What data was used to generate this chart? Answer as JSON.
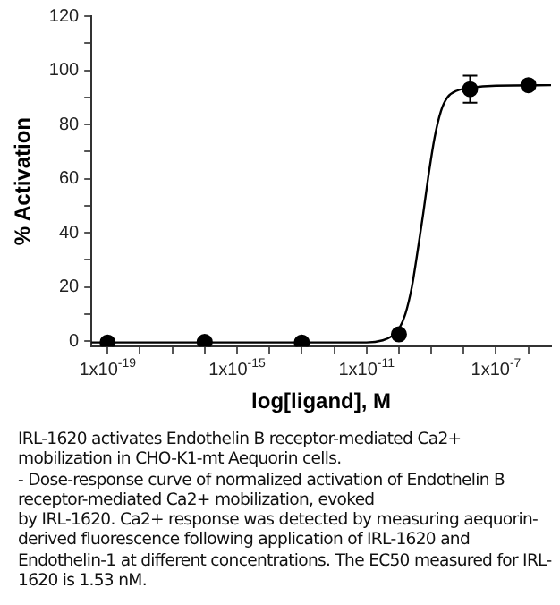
{
  "chart_data": {
    "type": "scatter",
    "xlabel": "log[ligand], M",
    "ylabel": "% Activation",
    "log": "x",
    "grid": false,
    "legend": false,
    "xlim": [
      3.16e-20,
      5.01e-06
    ],
    "xticks": [
      {
        "value": 1e-19,
        "label": "1x10$^{-19}$"
      },
      {
        "value": 1e-18,
        "label": null
      },
      {
        "value": 1e-17,
        "label": null
      },
      {
        "value": 1e-16,
        "label": null
      },
      {
        "value": 1e-15,
        "label": "1x10$^{-15}$"
      },
      {
        "value": 1e-14,
        "label": null
      },
      {
        "value": 1e-13,
        "label": null
      },
      {
        "value": 1e-12,
        "label": null
      },
      {
        "value": 1e-11,
        "label": "1x10$^{-11}$"
      },
      {
        "value": 1e-10,
        "label": null
      },
      {
        "value": 1e-09,
        "label": null
      },
      {
        "value": 1e-08,
        "label": null
      },
      {
        "value": 1e-07,
        "label": "1x10$^{-7}$"
      },
      {
        "value": 1e-06,
        "label": null
      }
    ],
    "ylim": [
      -2,
      120
    ],
    "yticks": [
      0,
      {
        "value": 10,
        "label": null
      },
      20,
      {
        "value": 30,
        "label": null
      },
      40,
      {
        "value": 50,
        "label": null
      },
      60,
      {
        "value": 70,
        "label": null
      },
      80,
      {
        "value": 90,
        "label": null
      },
      100,
      {
        "value": 110,
        "label": null
      },
      120
    ],
    "series": [
      {
        "type": "scatter",
        "color": "#000000",
        "marker": "circle",
        "x": [
          1e-19,
          1e-16,
          1e-13,
          1e-10,
          1.58e-08,
          1e-06
        ],
        "values": [
          -0.5,
          -0.3,
          -0.5,
          2.5,
          93,
          94.5
        ],
        "errors": [
          null,
          null,
          null,
          null,
          5,
          1.5
        ]
      },
      {
        "type": "line",
        "color": "#000000",
        "line_style": "solid",
        "marker": "none",
        "x": [
          3.16e-20,
          1e-11,
          3.16e-11,
          6.31e-11,
          1e-10,
          1.58e-10,
          2.51e-10,
          3.98e-10,
          5.62e-10,
          7.94e-10,
          1.26e-09,
          2e-09,
          3.16e-09,
          6.31e-09,
          1.58e-08,
          1e-07,
          5.01e-06
        ],
        "values": [
          -0.5,
          -0.5,
          0.3,
          2,
          4.5,
          10,
          20,
          35,
          47,
          60,
          75,
          85,
          90,
          92.5,
          93.5,
          94.3,
          94.5
        ]
      }
    ],
    "annotations": [
      "IRL-1620 activates Endothelin B receptor-mediated Ca2+ mobilization in CHO-K1-mt Aequorin cells.\n- Dose-response curve of normalized activation of Endothelin B receptor-mediated Ca2+ mobilization, evoked\nby IRL-1620. Ca2+ response was detected by measuring aequorin-derived fluorescence following application of IRL-1620 and Endothelin-1 at different concentrations. The EC50 measured for IRL-1620 is 1.53 nM."
    ]
  }
}
